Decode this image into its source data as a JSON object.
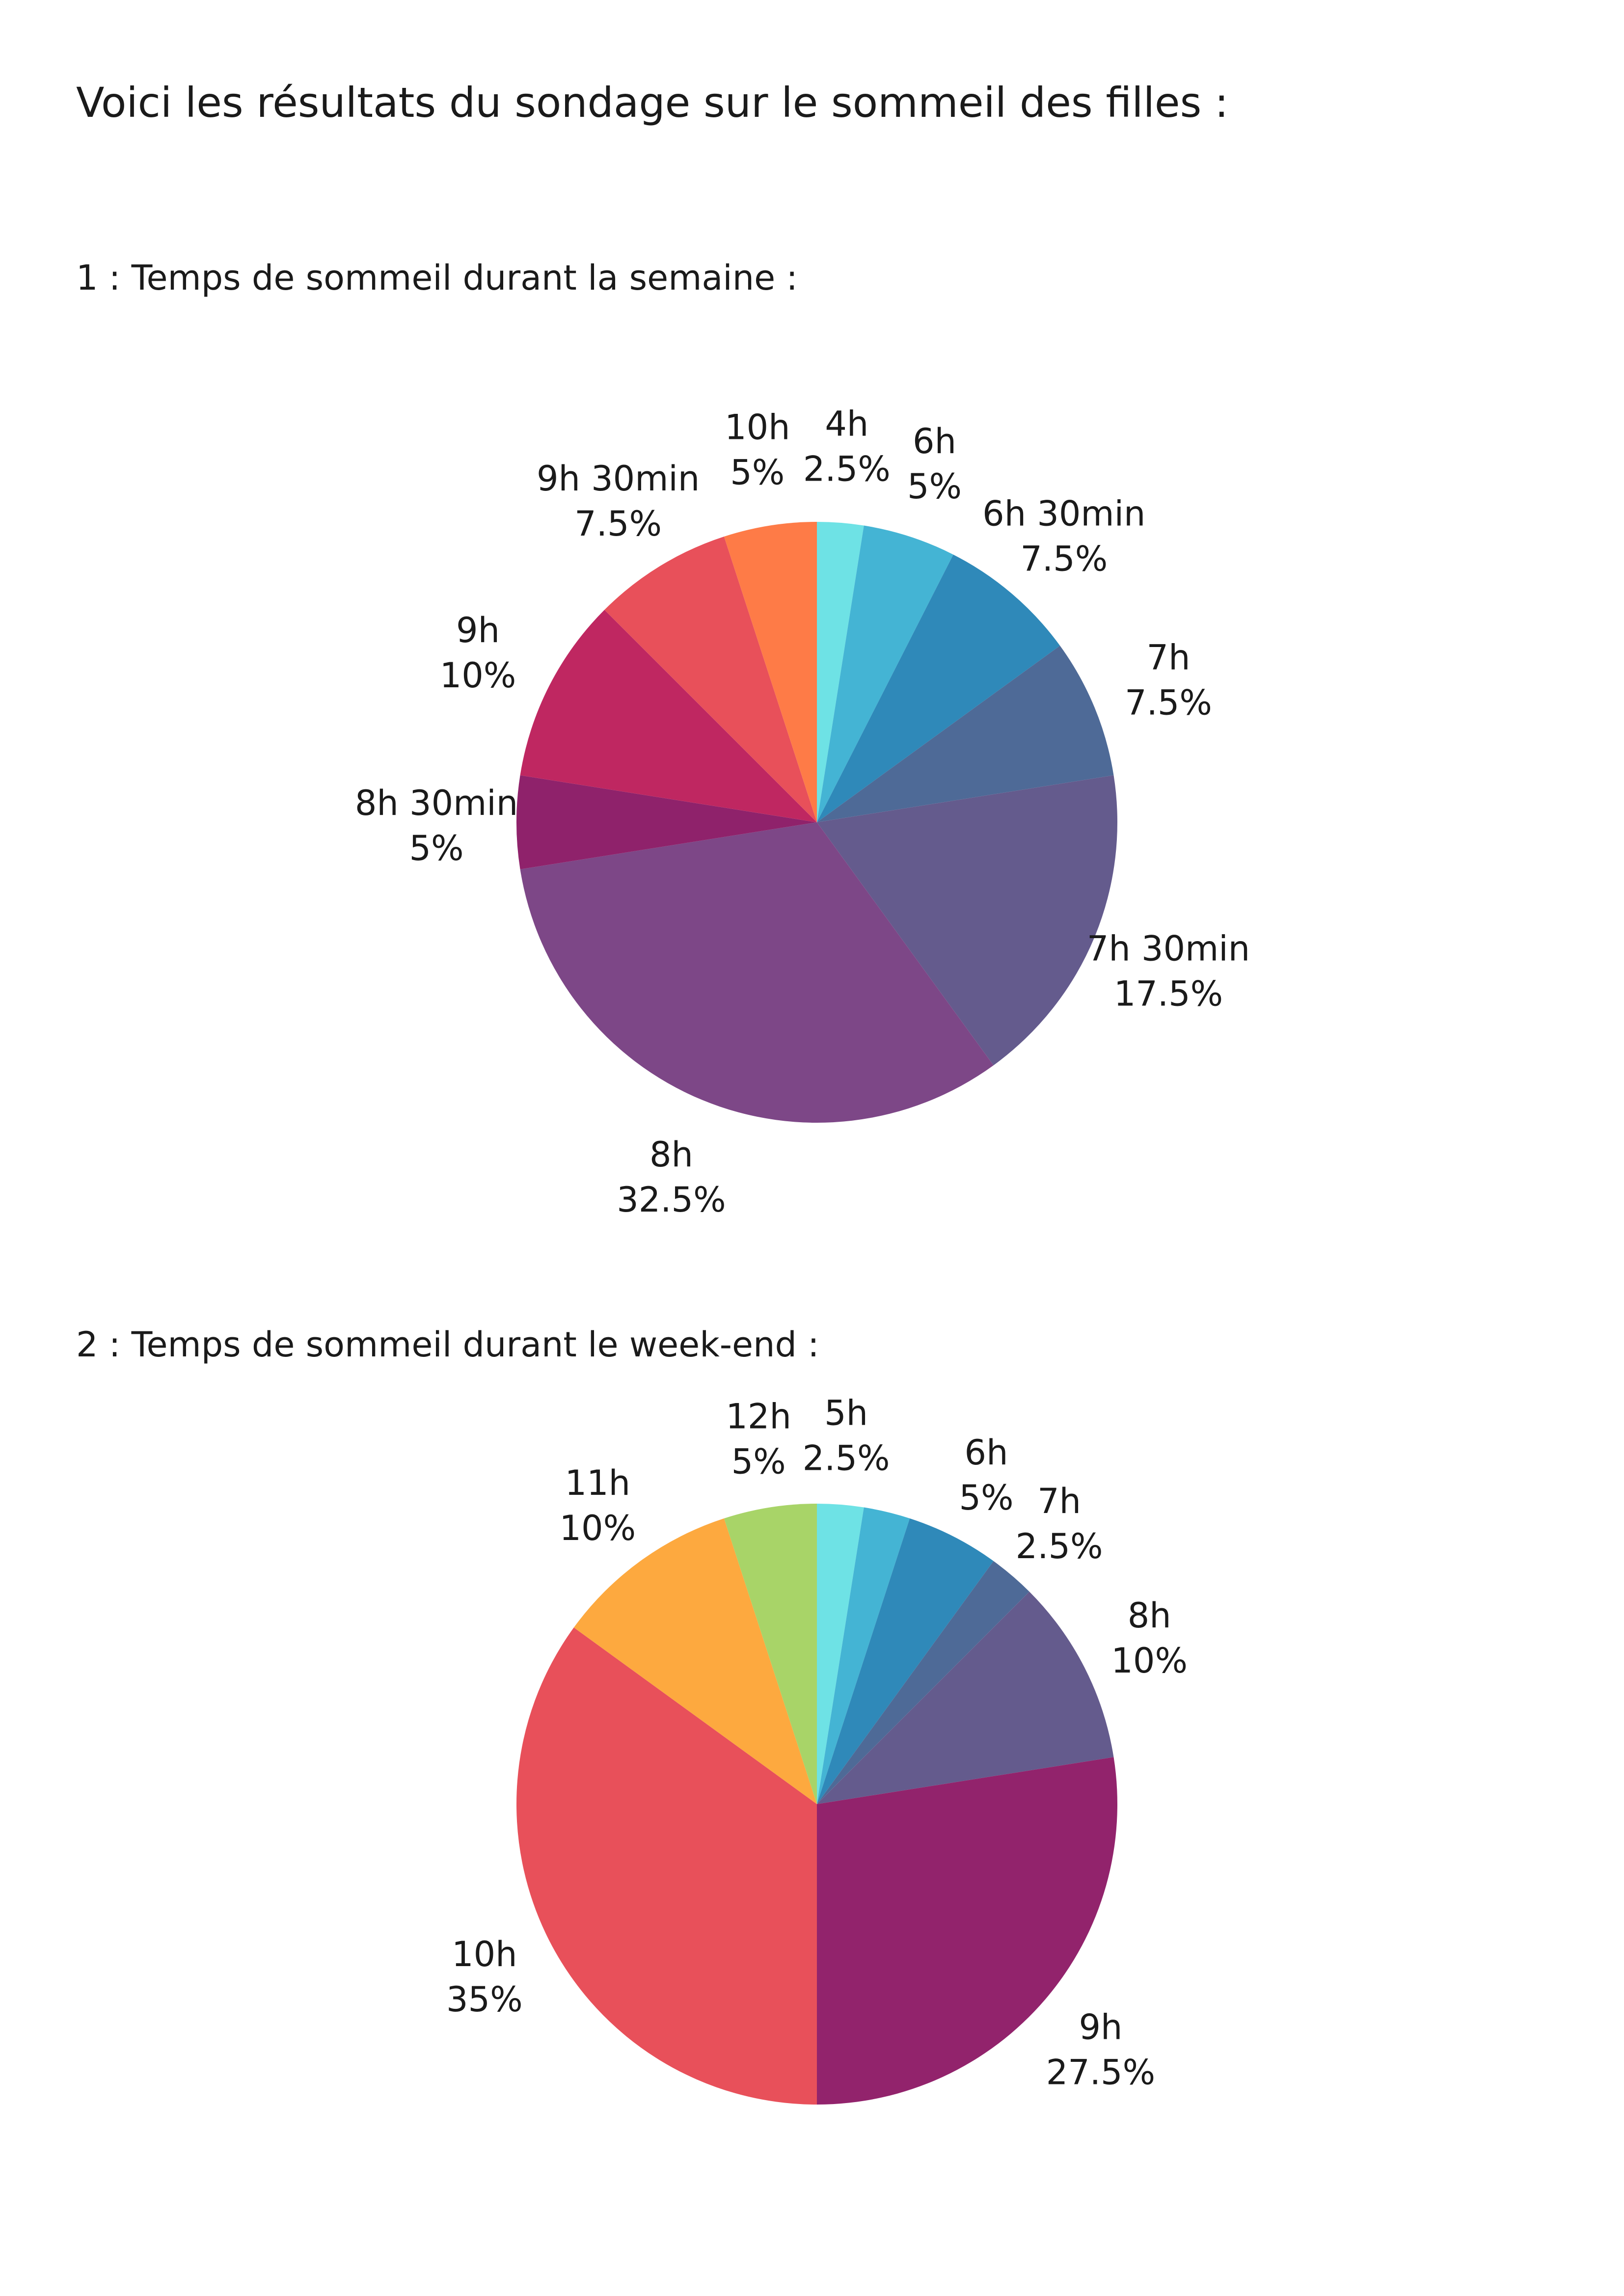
{
  "page": {
    "title": "Voici les résultats du sondage sur le sommeil des filles  :"
  },
  "chart_data": [
    {
      "type": "pie",
      "title": "1 : Temps de sommeil durant la semaine :",
      "slices": [
        {
          "label": "4h",
          "value": 2.5,
          "display": "2.5%",
          "color": "#6ee2e5"
        },
        {
          "label": "6h",
          "value": 5,
          "display": "5%",
          "color": "#44b4d4"
        },
        {
          "label": "6h 30min",
          "value": 7.5,
          "display": "7.5%",
          "color": "#2f89b9"
        },
        {
          "label": "7h",
          "value": 7.5,
          "display": "7.5%",
          "color": "#4e6a97"
        },
        {
          "label": "7h 30min",
          "value": 17.5,
          "display": "17.5%",
          "color": "#645b8d"
        },
        {
          "label": "8h",
          "value": 32.5,
          "display": "32.5%",
          "color": "#7d4787"
        },
        {
          "label": "8h 30min",
          "value": 5,
          "display": "5%",
          "color": "#8f226b"
        },
        {
          "label": "9h",
          "value": 10,
          "display": "10%",
          "color": "#bf2761"
        },
        {
          "label": "9h 30min",
          "value": 7.5,
          "display": "7.5%",
          "color": "#e8505a"
        },
        {
          "label": "10h",
          "value": 5,
          "display": "5%",
          "color": "#fe7b47"
        }
      ]
    },
    {
      "type": "pie",
      "title": "2 : Temps de sommeil durant le week-end :",
      "slices": [
        {
          "label": "5h",
          "value": 2.5,
          "display": "2.5%",
          "color": "#6ee2e5"
        },
        {
          "label": "",
          "value": 2.5,
          "display": "",
          "color": "#44b4d4"
        },
        {
          "label": "6h",
          "value": 5,
          "display": "5%",
          "color": "#2f89b9"
        },
        {
          "label": "7h",
          "value": 2.5,
          "display": "2.5%",
          "color": "#4e6a97"
        },
        {
          "label": "8h",
          "value": 10,
          "display": "10%",
          "color": "#645b8d"
        },
        {
          "label": "9h",
          "value": 27.5,
          "display": "27.5%",
          "color": "#92236c"
        },
        {
          "label": "10h",
          "value": 35,
          "display": "35%",
          "color": "#e8505a"
        },
        {
          "label": "11h",
          "value": 10,
          "display": "10%",
          "color": "#fda93f"
        },
        {
          "label": "12h",
          "value": 5,
          "display": "5%",
          "color": "#a8d468"
        }
      ]
    }
  ]
}
